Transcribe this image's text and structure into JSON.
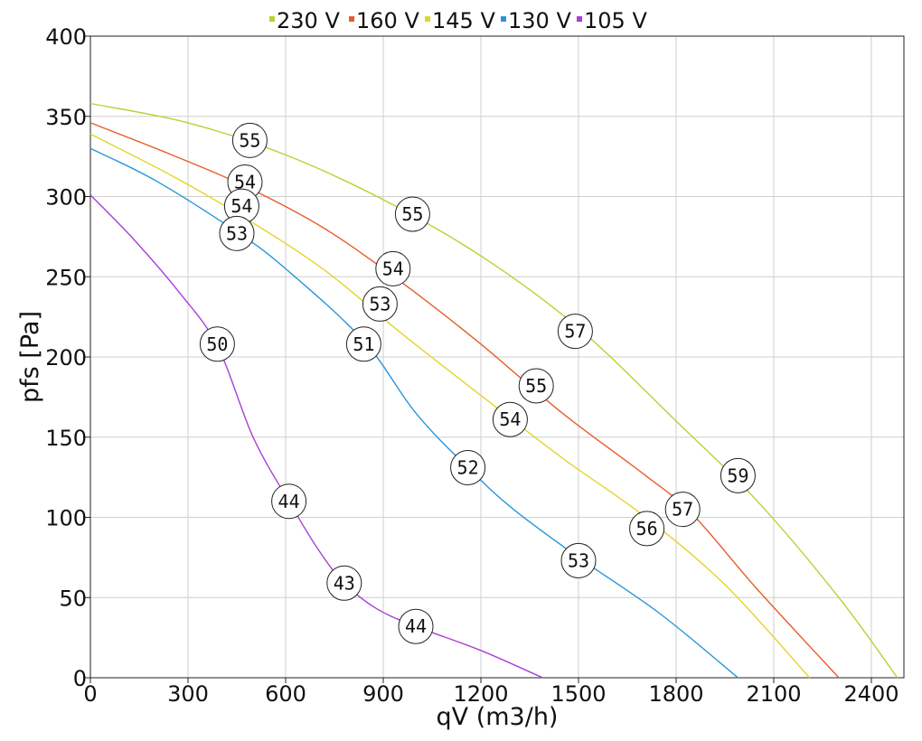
{
  "chart_data": {
    "type": "line",
    "title": "",
    "xlabel": "qV (m3/h)",
    "ylabel": "pfs [Pa]",
    "xlim": [
      0,
      2500
    ],
    "ylim": [
      0,
      400
    ],
    "xticks": [
      0,
      300,
      600,
      900,
      1200,
      1500,
      1800,
      2100,
      2400
    ],
    "yticks": [
      0,
      50,
      100,
      150,
      200,
      250,
      300,
      350,
      400
    ],
    "grid": true,
    "legend_position": "top",
    "series": [
      {
        "name": "230 V",
        "color": "#b5d334",
        "points": [
          [
            0,
            358
          ],
          [
            300,
            346
          ],
          [
            600,
            326
          ],
          [
            900,
            298
          ],
          [
            1200,
            263
          ],
          [
            1500,
            218
          ],
          [
            1800,
            160
          ],
          [
            2050,
            110
          ],
          [
            2300,
            50
          ],
          [
            2480,
            0
          ]
        ],
        "labels": [
          {
            "x": 490,
            "y": 335,
            "text": "55"
          },
          {
            "x": 990,
            "y": 289,
            "text": "55"
          },
          {
            "x": 1490,
            "y": 216,
            "text": "57"
          },
          {
            "x": 1990,
            "y": 126,
            "text": "59"
          }
        ]
      },
      {
        "name": "160 V",
        "color": "#e85d2a",
        "points": [
          [
            0,
            346
          ],
          [
            250,
            326
          ],
          [
            480,
            306
          ],
          [
            720,
            280
          ],
          [
            960,
            246
          ],
          [
            1200,
            208
          ],
          [
            1450,
            165
          ],
          [
            1700,
            127
          ],
          [
            1850,
            102
          ],
          [
            2050,
            55
          ],
          [
            2300,
            0
          ]
        ],
        "labels": [
          {
            "x": 475,
            "y": 309,
            "text": "54"
          },
          {
            "x": 930,
            "y": 255,
            "text": "54"
          },
          {
            "x": 1370,
            "y": 182,
            "text": "55"
          },
          {
            "x": 1820,
            "y": 105,
            "text": "57"
          }
        ]
      },
      {
        "name": "145 V",
        "color": "#e2d52a",
        "points": [
          [
            0,
            339
          ],
          [
            250,
            313
          ],
          [
            480,
            286
          ],
          [
            720,
            254
          ],
          [
            960,
            214
          ],
          [
            1200,
            176
          ],
          [
            1450,
            137
          ],
          [
            1700,
            101
          ],
          [
            1950,
            58
          ],
          [
            2210,
            0
          ]
        ],
        "labels": [
          {
            "x": 465,
            "y": 294,
            "text": "54"
          },
          {
            "x": 890,
            "y": 233,
            "text": "53"
          },
          {
            "x": 1290,
            "y": 161,
            "text": "54"
          },
          {
            "x": 1710,
            "y": 93,
            "text": "56"
          }
        ]
      },
      {
        "name": "130 V",
        "color": "#2a96d9",
        "points": [
          [
            0,
            330
          ],
          [
            200,
            310
          ],
          [
            450,
            278
          ],
          [
            600,
            255
          ],
          [
            840,
            210
          ],
          [
            1000,
            165
          ],
          [
            1160,
            131
          ],
          [
            1300,
            105
          ],
          [
            1500,
            75
          ],
          [
            1750,
            40
          ],
          [
            1990,
            0
          ]
        ],
        "labels": [
          {
            "x": 450,
            "y": 277,
            "text": "53"
          },
          {
            "x": 840,
            "y": 208,
            "text": "51"
          },
          {
            "x": 1160,
            "y": 131,
            "text": "52"
          },
          {
            "x": 1500,
            "y": 73,
            "text": "53"
          }
        ]
      },
      {
        "name": "105 V",
        "color": "#a93fd6",
        "points": [
          [
            0,
            301
          ],
          [
            130,
            274
          ],
          [
            270,
            241
          ],
          [
            390,
            207
          ],
          [
            500,
            150
          ],
          [
            610,
            110
          ],
          [
            700,
            80
          ],
          [
            780,
            59
          ],
          [
            880,
            43
          ],
          [
            1000,
            32
          ],
          [
            1200,
            17
          ],
          [
            1390,
            0
          ]
        ],
        "labels": [
          {
            "x": 390,
            "y": 208,
            "text": "50"
          },
          {
            "x": 610,
            "y": 110,
            "text": "44"
          },
          {
            "x": 780,
            "y": 59,
            "text": "43"
          },
          {
            "x": 1000,
            "y": 32,
            "text": "44"
          }
        ]
      }
    ]
  }
}
